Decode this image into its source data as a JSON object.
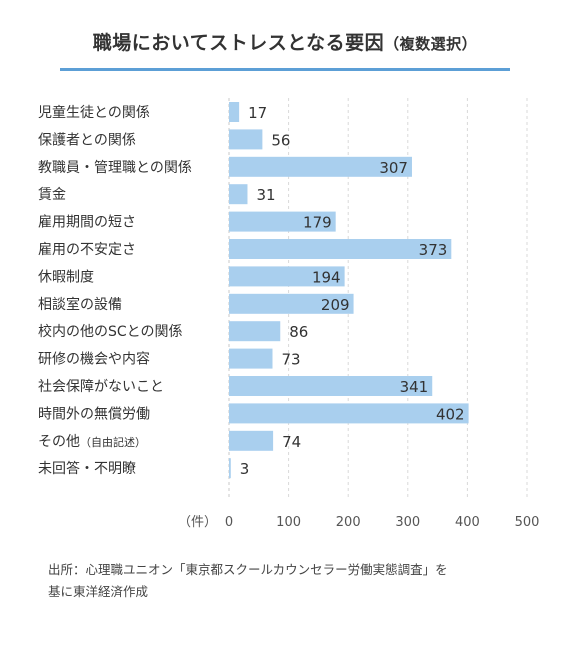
{
  "title": {
    "main": "職場においてストレスとなる要因",
    "suffix": "（複数選択）"
  },
  "source": {
    "line1": "出所：心理職ユニオン「東京都スクールカウンセラー労働実態調査」を",
    "line2": "基に東洋経済作成"
  },
  "colors": {
    "bar": "#a9cfee",
    "accent": "#5c9fd6",
    "grid": "#d9d9d9",
    "text": "#333333"
  },
  "chart_data": {
    "type": "bar",
    "orientation": "horizontal",
    "categories": [
      "児童生徒との関係",
      "保護者との関係",
      "教職員・管理職との関係",
      "賃金",
      "雇用期間の短さ",
      "雇用の不安定さ",
      "休暇制度",
      "相談室の設備",
      "校内の他のSCとの関係",
      "研修の機会や内容",
      "社会保障がないこと",
      "時間外の無償労働",
      "その他",
      "未回答・不明瞭"
    ],
    "category_notes": [
      "",
      "",
      "",
      "",
      "",
      "",
      "",
      "",
      "",
      "",
      "",
      "",
      "（自由記述）",
      ""
    ],
    "values": [
      17,
      56,
      307,
      31,
      179,
      373,
      194,
      209,
      86,
      73,
      341,
      402,
      74,
      3
    ],
    "unit": "（件）",
    "xlim": [
      0,
      500
    ],
    "xticks": [
      0,
      100,
      200,
      300,
      400,
      500
    ],
    "grid": "vertical dashed"
  }
}
